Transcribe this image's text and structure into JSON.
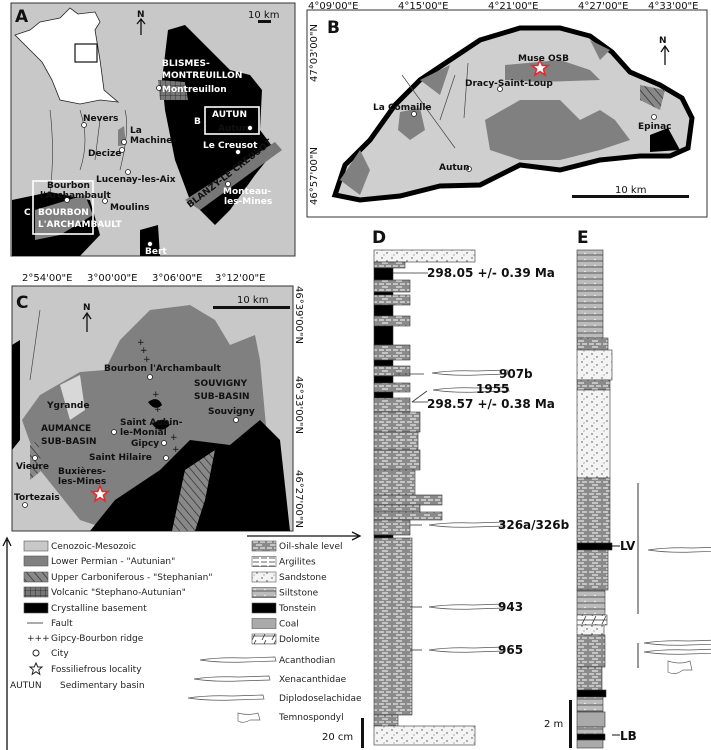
{
  "panels": {
    "a": "A",
    "b": "B",
    "c": "C",
    "d": "D",
    "e": "E"
  },
  "north": "N",
  "scale_10km": "10 km",
  "colors": {
    "cenozoic": "#c8c8c8",
    "permian": "#808080",
    "basement": "#000000",
    "star": "#e8282b",
    "france": "#ffffff"
  },
  "map_a": {
    "basins": [
      "BLISMES-",
      "MONTREUILLON",
      "AUTUN",
      "BLANZY-LE CREUSOT",
      "BOURBON",
      "L'ARCHAMBAULT"
    ],
    "box_labels": {
      "b": "B",
      "c": "C"
    },
    "cities": [
      "Montreuillon",
      "Autun",
      "Nevers",
      "La",
      "Machine",
      "Decize",
      "Le Creusot",
      "Lucenay-les-Aix",
      "Bourbon",
      "l'Archambault",
      "Moulins",
      "Monteau-",
      "les-Mines",
      "Bert"
    ]
  },
  "map_b": {
    "x_ticks": [
      "4°09'00\"E",
      "4°15'00\"E",
      "4°21'00\"E",
      "4°27'00\"E",
      "4°33'00\"E"
    ],
    "y_ticks": [
      "47°03'00\"N",
      "46°57'00\"N"
    ],
    "cities": [
      "Muse OSB",
      "Dracy-Saint-Loup",
      "La Comaille",
      "Epinac",
      "Autun"
    ]
  },
  "map_c": {
    "x_ticks": [
      "2°54'00\"E",
      "3°00'00\"E",
      "3°06'00\"E",
      "3°12'00\"E"
    ],
    "y_ticks": [
      "46°39'00\"N",
      "46°33'00\"N",
      "46°27'00\"N"
    ],
    "basins": [
      "SOUVIGNY",
      "SUB-BASIN",
      "AUMANCE",
      "SUB-BASIN"
    ],
    "cities": [
      "Bourbon l'Archambault",
      "Ygrande",
      "Saint Aubin-",
      "le-Monial",
      "Souvigny",
      "Gipcy",
      "Saint Hilaire",
      "Vieure",
      "Buxières-",
      "les-Mines",
      "Tortezais"
    ]
  },
  "legend_map": [
    {
      "label": "Cenozoic-Mesozoic",
      "swatch": "cenozoic"
    },
    {
      "label": "Lower Permian - \"Autunian\"",
      "swatch": "permian"
    },
    {
      "label": "Upper Carboniferous - \"Stephanian\"",
      "swatch": "hatch"
    },
    {
      "label": "Volcanic \"Stephano-Autunian\"",
      "swatch": "grid"
    },
    {
      "label": "Crystalline basement",
      "swatch": "basement"
    },
    {
      "label": "Fault",
      "swatch": "line"
    },
    {
      "label": "Gipcy-Bourbon ridge",
      "swatch": "crosses",
      "symbol": "+++"
    },
    {
      "label": "City",
      "swatch": "circle"
    },
    {
      "label": "Fossiliefrous locality",
      "swatch": "star"
    },
    {
      "label": "Sedimentary basin",
      "symbol": "AUTUN"
    }
  ],
  "legend_litho": [
    "Oil-shale level",
    "Argilites",
    "Sandstone",
    "Siltstone",
    "Tonstein",
    "Coal",
    "Dolomite"
  ],
  "legend_fossils": [
    "Acanthodian",
    "Xenacanthidae",
    "Diplodoselachidae",
    "Temnospondyl"
  ],
  "column_d": {
    "annotations": [
      "298.05 +/- 0.39 Ma",
      "907b",
      "1955",
      "298.57 +/- 0.38 Ma",
      "326a/326b",
      "943",
      "965"
    ],
    "scale": "20 cm"
  },
  "column_e": {
    "annotations": [
      "LV",
      "LB"
    ],
    "scale": "2 m"
  }
}
